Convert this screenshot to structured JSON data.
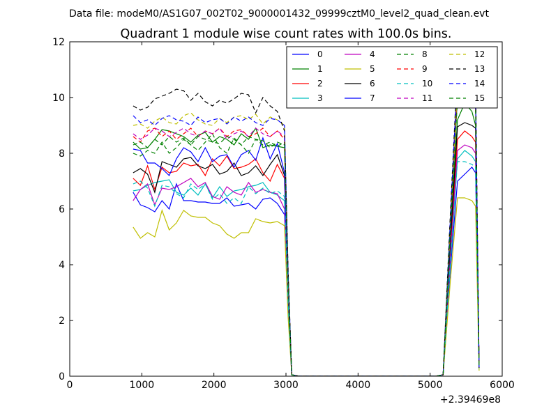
{
  "figure": {
    "suptitle": "Data file: modeM0/AS1G07_002T02_9000001432_09999cztM0_level2_quad_clean.evt"
  },
  "chart_data": {
    "type": "line",
    "title": "Quadrant 1 module wise count rates with 100.0s bins.",
    "xlabel": "",
    "ylabel": "",
    "xlim": [
      0,
      6000
    ],
    "ylim": [
      0,
      12
    ],
    "x_offset_label": "+2.39469e8",
    "x_ticks": [
      0,
      1000,
      2000,
      3000,
      4000,
      5000,
      6000
    ],
    "y_ticks": [
      0,
      2,
      4,
      6,
      8,
      10,
      12
    ],
    "grid": false,
    "legend_position": "top-right",
    "legend_columns": 4,
    "x": [
      880,
      980,
      1080,
      1180,
      1280,
      1380,
      1480,
      1580,
      1680,
      1780,
      1880,
      1980,
      2080,
      2180,
      2280,
      2380,
      2480,
      2580,
      2680,
      2780,
      2880,
      2980,
      3030,
      3080,
      3180,
      3280,
      3380,
      3480,
      3580,
      3680,
      3780,
      3880,
      3980,
      4080,
      4180,
      4280,
      4380,
      4480,
      4580,
      4680,
      4780,
      4880,
      4980,
      5080,
      5180,
      5280,
      5380,
      5480,
      5580,
      5630,
      5680
    ],
    "series": [
      {
        "name": "0",
        "color": "#0000ff",
        "dash": "solid",
        "values": [
          6.6,
          6.15,
          6.05,
          5.9,
          6.3,
          6.0,
          6.9,
          6.3,
          6.3,
          6.25,
          6.25,
          6.2,
          6.2,
          6.4,
          6.1,
          6.15,
          6.2,
          6.0,
          6.35,
          6.4,
          6.2,
          5.8,
          2.5,
          0.05,
          0,
          0,
          0,
          0,
          0,
          0,
          0,
          0,
          0,
          0,
          0,
          0,
          0,
          0,
          0,
          0,
          0,
          0,
          0,
          0,
          0.05,
          3.8,
          7.0,
          7.25,
          7.5,
          7.3,
          0.3
        ]
      },
      {
        "name": "1",
        "color": "#008000",
        "dash": "solid",
        "values": [
          8.4,
          8.15,
          8.2,
          8.5,
          8.85,
          8.8,
          8.7,
          8.6,
          8.4,
          8.65,
          8.75,
          8.4,
          8.6,
          8.5,
          8.3,
          8.7,
          8.5,
          8.9,
          8.2,
          8.3,
          8.25,
          8.2,
          3.3,
          0.05,
          0,
          0,
          0,
          0,
          0,
          0,
          0,
          0,
          0,
          0,
          0,
          0,
          0,
          0,
          0,
          0,
          0,
          0,
          0,
          0,
          0.05,
          5.0,
          9.2,
          9.8,
          9.5,
          9.0,
          0.3
        ]
      },
      {
        "name": "2",
        "color": "#ff0000",
        "dash": "solid",
        "values": [
          7.1,
          6.85,
          7.55,
          6.7,
          7.5,
          7.3,
          7.35,
          7.65,
          7.55,
          7.6,
          7.2,
          7.8,
          7.55,
          7.9,
          7.45,
          7.5,
          7.6,
          7.8,
          7.3,
          7.0,
          7.6,
          7.1,
          2.9,
          0.05,
          0,
          0,
          0,
          0,
          0,
          0,
          0,
          0,
          0,
          0,
          0,
          0,
          0,
          0,
          0,
          0,
          0,
          0,
          0,
          0,
          0.05,
          4.5,
          8.5,
          8.8,
          8.6,
          8.4,
          0.3
        ]
      },
      {
        "name": "3",
        "color": "#00bfbf",
        "dash": "solid",
        "values": [
          6.65,
          6.7,
          6.85,
          6.95,
          7.0,
          7.05,
          6.6,
          6.5,
          6.75,
          6.5,
          6.9,
          6.4,
          6.8,
          6.45,
          6.65,
          6.7,
          6.8,
          6.85,
          6.95,
          6.6,
          6.5,
          6.3,
          2.5,
          0.05,
          0,
          0,
          0,
          0,
          0,
          0,
          0,
          0,
          0,
          0,
          0,
          0,
          0,
          0,
          0,
          0,
          0,
          0,
          0,
          0,
          0.05,
          4.0,
          7.8,
          8.1,
          7.9,
          7.7,
          0.25
        ]
      },
      {
        "name": "4",
        "color": "#bf00bf",
        "dash": "solid",
        "values": [
          6.3,
          6.7,
          6.9,
          6.15,
          6.75,
          6.7,
          6.8,
          6.95,
          7.1,
          6.8,
          6.95,
          6.45,
          6.35,
          6.8,
          6.6,
          6.5,
          6.95,
          6.6,
          6.7,
          6.6,
          6.55,
          6.0,
          2.4,
          0.05,
          0,
          0,
          0,
          0,
          0,
          0,
          0,
          0,
          0,
          0,
          0,
          0,
          0,
          0,
          0,
          0,
          0,
          0,
          0,
          0,
          0.05,
          4.2,
          8.1,
          8.3,
          8.2,
          8.0,
          0.3
        ]
      },
      {
        "name": "5",
        "color": "#bfbf00",
        "dash": "solid",
        "values": [
          5.35,
          4.95,
          5.15,
          5.0,
          5.95,
          5.25,
          5.5,
          5.95,
          5.75,
          5.7,
          5.7,
          5.5,
          5.4,
          5.1,
          4.95,
          5.15,
          5.15,
          5.65,
          5.55,
          5.5,
          5.55,
          5.4,
          2.1,
          0.05,
          0,
          0,
          0,
          0,
          0,
          0,
          0,
          0,
          0,
          0,
          0,
          0,
          0,
          0,
          0,
          0,
          0,
          0,
          0,
          0,
          0.05,
          3.4,
          6.4,
          6.4,
          6.3,
          6.1,
          0.2
        ]
      },
      {
        "name": "6",
        "color": "#000000",
        "dash": "solid",
        "values": [
          7.3,
          7.45,
          7.25,
          6.6,
          7.7,
          7.6,
          7.5,
          7.8,
          7.85,
          7.55,
          7.45,
          7.6,
          7.25,
          7.35,
          7.65,
          7.2,
          7.3,
          7.55,
          7.2,
          7.6,
          7.95,
          7.2,
          3.0,
          0.05,
          0,
          0,
          0,
          0,
          0,
          0,
          0,
          0,
          0,
          0,
          0,
          0,
          0,
          0,
          0,
          0,
          0,
          0,
          0,
          0,
          0.05,
          4.8,
          8.95,
          9.1,
          9.0,
          8.9,
          0.3
        ]
      },
      {
        "name": "7",
        "color": "#0000ff",
        "dash": "solid",
        "values": [
          8.15,
          8.1,
          7.65,
          7.65,
          7.45,
          7.2,
          7.8,
          8.2,
          8.05,
          7.7,
          8.2,
          7.7,
          7.9,
          7.95,
          7.5,
          7.95,
          8.1,
          7.75,
          8.55,
          7.8,
          8.35,
          7.3,
          3.1,
          0.05,
          0,
          0,
          0,
          0,
          0,
          0,
          0,
          0,
          0,
          0,
          0,
          0,
          0,
          0,
          0,
          0,
          0,
          0,
          0,
          0,
          0.05,
          5.1,
          10.7,
          10.3,
          10.0,
          9.9,
          0.3
        ]
      },
      {
        "name": "8",
        "color": "#008000",
        "dash": "dashed",
        "values": [
          8.0,
          7.9,
          8.1,
          8.0,
          8.4,
          8.0,
          8.2,
          8.5,
          8.3,
          8.1,
          8.4,
          8.7,
          8.2,
          8.0,
          8.55,
          8.3,
          8.0,
          8.5,
          8.3,
          8.4,
          8.25,
          8.4,
          3.4,
          0.05,
          0,
          0,
          0,
          0,
          0,
          0,
          0,
          0,
          0,
          0,
          0,
          0,
          0,
          0,
          0,
          0,
          0,
          0,
          0,
          0,
          0.05,
          5.2,
          10.0,
          10.3,
          10.1,
          9.7,
          0.3
        ]
      },
      {
        "name": "9",
        "color": "#ff0000",
        "dash": "dashed",
        "values": [
          8.6,
          8.4,
          8.8,
          8.9,
          8.6,
          8.8,
          8.5,
          8.7,
          8.9,
          8.6,
          8.8,
          8.7,
          8.9,
          8.6,
          8.8,
          8.85,
          8.6,
          8.7,
          8.9,
          8.6,
          8.8,
          8.5,
          3.5,
          0.05,
          0,
          0,
          0,
          0,
          0,
          0,
          0,
          0,
          0,
          0,
          0,
          0,
          0,
          0,
          0,
          0,
          0,
          0,
          0,
          0,
          0.05,
          5.4,
          10.3,
          10.5,
          10.2,
          9.8,
          0.3
        ]
      },
      {
        "name": "10",
        "color": "#00bfbf",
        "dash": "dashed",
        "values": [
          6.9,
          7.0,
          6.75,
          6.1,
          6.85,
          6.8,
          6.55,
          6.4,
          6.9,
          6.7,
          6.9,
          6.35,
          6.55,
          6.2,
          6.4,
          6.2,
          6.8,
          6.55,
          6.75,
          6.55,
          6.65,
          6.45,
          2.6,
          0.05,
          0,
          0,
          0,
          0,
          0,
          0,
          0,
          0,
          0,
          0,
          0,
          0,
          0,
          0,
          0,
          0,
          0,
          0,
          0,
          0,
          0.05,
          4.1,
          7.7,
          7.7,
          7.6,
          7.5,
          0.25
        ]
      },
      {
        "name": "11",
        "color": "#bf00bf",
        "dash": "dashed",
        "values": [
          8.7,
          8.5,
          8.65,
          8.9,
          8.8,
          8.6,
          8.75,
          8.9,
          8.7,
          8.6,
          8.8,
          8.7,
          8.9,
          8.5,
          8.7,
          8.8,
          8.6,
          8.9,
          8.7,
          8.6,
          8.8,
          8.6,
          3.5,
          0.05,
          0,
          0,
          0,
          0,
          0,
          0,
          0,
          0,
          0,
          0,
          0,
          0,
          0,
          0,
          0,
          0,
          0,
          0,
          0,
          0,
          0.05,
          5.3,
          10.4,
          10.1,
          10.0,
          9.9,
          0.3
        ]
      },
      {
        "name": "12",
        "color": "#bfbf00",
        "dash": "dashed",
        "values": [
          9.0,
          9.05,
          8.9,
          9.15,
          9.3,
          9.1,
          9.05,
          9.35,
          9.45,
          9.2,
          9.05,
          9.0,
          9.25,
          9.1,
          9.3,
          9.35,
          9.2,
          9.4,
          9.05,
          9.3,
          9.2,
          9.0,
          3.6,
          0.05,
          0,
          0,
          0,
          0,
          0,
          0,
          0,
          0,
          0,
          0,
          0,
          0,
          0,
          0,
          0,
          0,
          0,
          0,
          0,
          0,
          0.05,
          5.5,
          10.5,
          10.8,
          10.6,
          10.3,
          0.3
        ]
      },
      {
        "name": "13",
        "color": "#000000",
        "dash": "dashed",
        "values": [
          9.7,
          9.55,
          9.65,
          9.95,
          10.05,
          10.15,
          10.3,
          10.25,
          9.9,
          10.15,
          9.85,
          9.7,
          9.9,
          9.8,
          9.95,
          10.15,
          10.1,
          9.45,
          10.0,
          9.7,
          9.5,
          8.8,
          3.8,
          0.05,
          0,
          0,
          0,
          0,
          0,
          0,
          0,
          0,
          0,
          0,
          0,
          0,
          0,
          0,
          0,
          0,
          0,
          0,
          0,
          0,
          0.05,
          5.8,
          11.1,
          11.0,
          10.9,
          10.7,
          0.3
        ]
      },
      {
        "name": "14",
        "color": "#0000ff",
        "dash": "dashed",
        "values": [
          9.35,
          9.1,
          9.2,
          9.0,
          9.25,
          9.35,
          9.2,
          9.15,
          9.0,
          9.3,
          9.1,
          9.2,
          9.25,
          9.05,
          9.3,
          9.15,
          9.3,
          9.1,
          9.0,
          9.25,
          9.2,
          9.0,
          3.7,
          0.05,
          0,
          0,
          0,
          0,
          0,
          0,
          0,
          0,
          0,
          0,
          0,
          0,
          0,
          0,
          0,
          0,
          0,
          0,
          0,
          0,
          0.05,
          5.6,
          10.9,
          10.6,
          10.4,
          10.2,
          0.3
        ]
      },
      {
        "name": "15",
        "color": "#008000",
        "dash": "dashed",
        "values": [
          8.3,
          8.4,
          8.2,
          8.5,
          8.3,
          8.6,
          8.4,
          8.55,
          8.3,
          8.6,
          8.5,
          8.4,
          8.35,
          8.6,
          8.5,
          8.3,
          8.6,
          8.5,
          8.45,
          8.2,
          8.4,
          8.3,
          3.4,
          0.05,
          0,
          0,
          0,
          0,
          0,
          0,
          0,
          0,
          0,
          0,
          0,
          0,
          0,
          0,
          0,
          0,
          0,
          0,
          0,
          0,
          0.05,
          5.3,
          9.9,
          10.2,
          9.8,
          9.6,
          0.3
        ]
      }
    ]
  }
}
